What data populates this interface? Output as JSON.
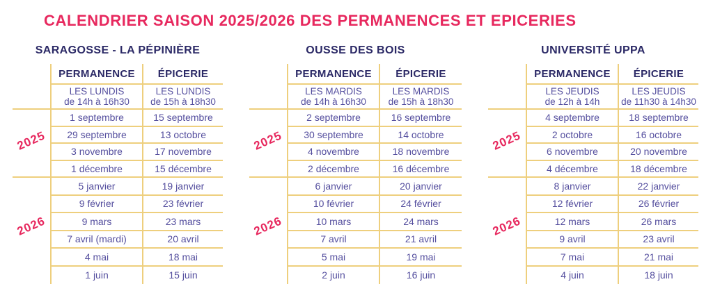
{
  "title": "CALENDRIER SAISON 2025/2026 DES PERMANENCES ET EPICERIES",
  "colors": {
    "accent_pink": "#E7285E",
    "navy": "#2B2966",
    "purple_text": "#544E9E",
    "grid_gold": "#EECF7D",
    "background": "#FFFFFF"
  },
  "tables": [
    {
      "name": "SARAGOSSE - LA PÉPINIÈRE",
      "columns": [
        "PERMANENCE",
        "ÉPICERIE"
      ],
      "permanence_schedule": [
        "LES LUNDIS",
        "de 14h à 16h30"
      ],
      "epicerie_schedule": [
        "LES LUNDIS",
        "de 15h à 18h30"
      ],
      "sections": [
        {
          "year": "2025",
          "rows": [
            [
              "1 septembre",
              "15 septembre"
            ],
            [
              "29 septembre",
              "13 octobre"
            ],
            [
              "3 novembre",
              "17 novembre"
            ],
            [
              "1 décembre",
              "15 décembre"
            ]
          ]
        },
        {
          "year": "2026",
          "rows": [
            [
              "5 janvier",
              "19 janvier"
            ],
            [
              "9 février",
              "23 février"
            ],
            [
              "9 mars",
              "23 mars"
            ],
            [
              "7 avril (mardi)",
              "20 avril"
            ],
            [
              "4 mai",
              "18 mai"
            ],
            [
              "1 juin",
              "15 juin"
            ]
          ]
        }
      ]
    },
    {
      "name": "OUSSE DES BOIS",
      "columns": [
        "PERMANENCE",
        "ÉPICERIE"
      ],
      "permanence_schedule": [
        "LES MARDIS",
        "de 14h à 16h30"
      ],
      "epicerie_schedule": [
        "LES MARDIS",
        "de 15h à 18h30"
      ],
      "sections": [
        {
          "year": "2025",
          "rows": [
            [
              "2 septembre",
              "16 septembre"
            ],
            [
              "30 septembre",
              "14 octobre"
            ],
            [
              "4 novembre",
              "18 novembre"
            ],
            [
              "2 décembre",
              "16 décembre"
            ]
          ]
        },
        {
          "year": "2026",
          "rows": [
            [
              "6 janvier",
              "20 janvier"
            ],
            [
              "10 février",
              "24 février"
            ],
            [
              "10 mars",
              "24 mars"
            ],
            [
              "7 avril",
              "21 avril"
            ],
            [
              "5 mai",
              "19 mai"
            ],
            [
              "2 juin",
              "16 juin"
            ]
          ]
        }
      ]
    },
    {
      "name": "UNIVERSITÉ UPPA",
      "columns": [
        "PERMANENCE",
        "ÉPICERIE"
      ],
      "permanence_schedule": [
        "LES JEUDIS",
        "de 12h à 14h"
      ],
      "epicerie_schedule": [
        "LES JEUDIS",
        "de 11h30 à 14h30"
      ],
      "sections": [
        {
          "year": "2025",
          "rows": [
            [
              "4 septembre",
              "18 septembre"
            ],
            [
              "2 octobre",
              "16 octobre"
            ],
            [
              "6 novembre",
              "20 novembre"
            ],
            [
              "4 décembre",
              "18 décembre"
            ]
          ]
        },
        {
          "year": "2026",
          "rows": [
            [
              "8 janvier",
              "22 janvier"
            ],
            [
              "12 février",
              "26 février"
            ],
            [
              "12 mars",
              "26 mars"
            ],
            [
              "9 avril",
              "23 avril"
            ],
            [
              "7 mai",
              "21 mai"
            ],
            [
              "4 juin",
              "18 juin"
            ]
          ]
        }
      ]
    }
  ]
}
